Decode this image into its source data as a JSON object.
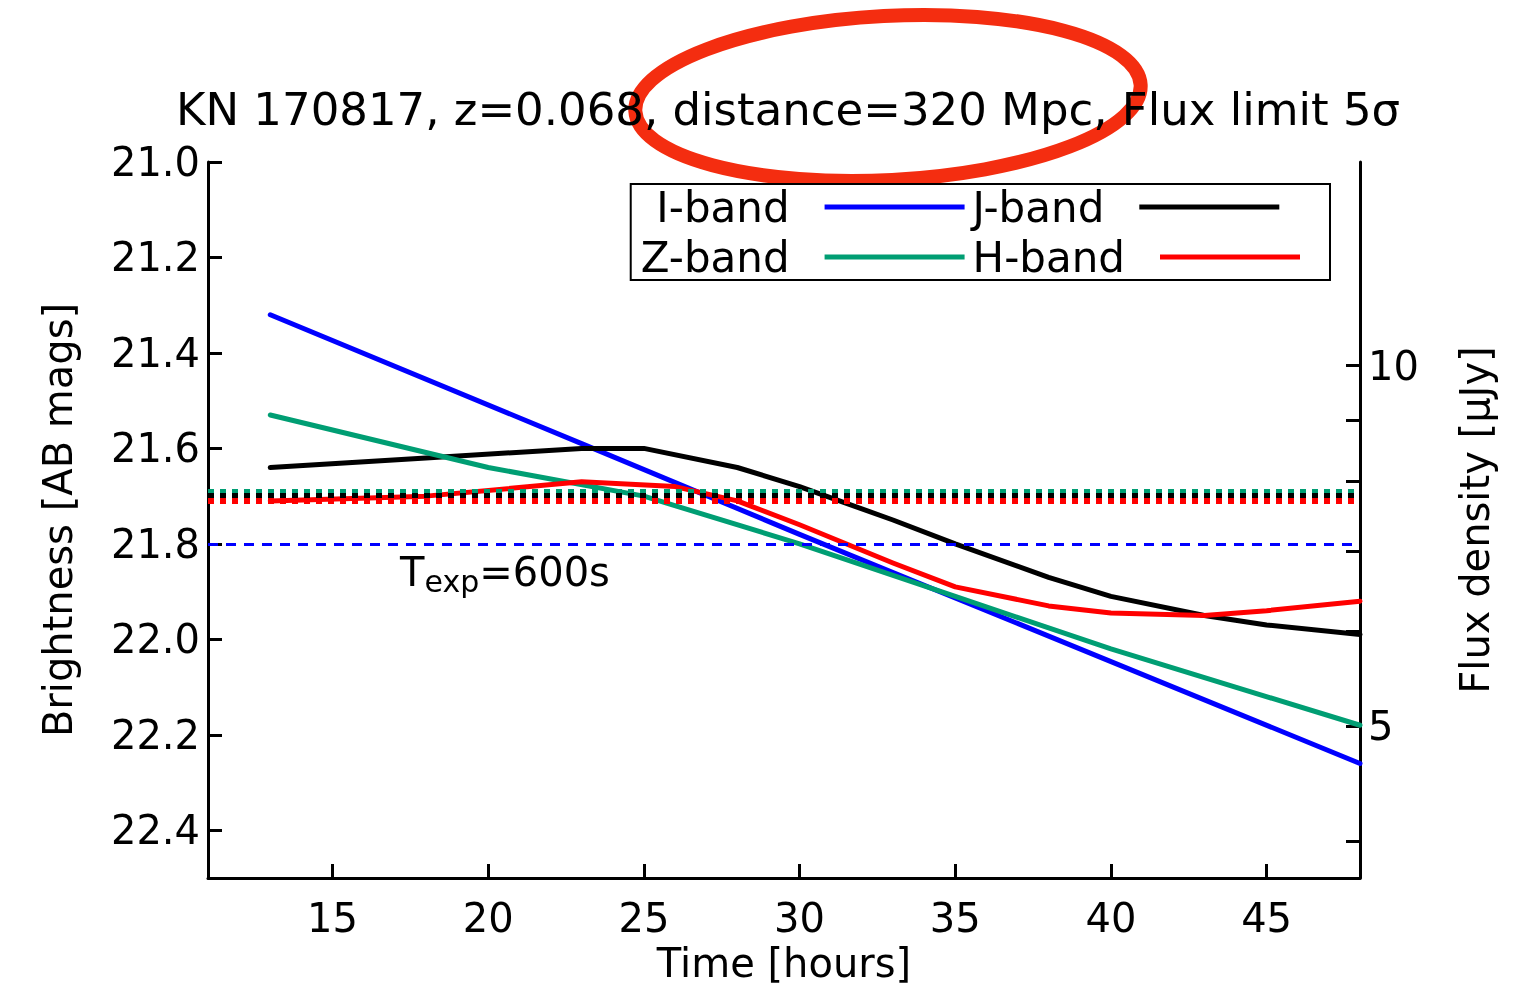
{
  "chart_data": {
    "type": "line",
    "title": "KN 170817, z=0.068, distance=320 Mpc, Flux limit 5σ",
    "xlabel": "Time [hours]",
    "ylabel": "Brightness [AB mags]",
    "y2label": "Flux density [μJy]",
    "xlim": [
      11,
      48
    ],
    "xticks": [
      15,
      20,
      25,
      30,
      35,
      40,
      45
    ],
    "ylim": [
      22.5,
      21.0
    ],
    "yticks": [
      {
        "value": 21.0,
        "label": "21.0"
      },
      {
        "value": 21.2,
        "label": "21.2"
      },
      {
        "value": 21.4,
        "label": "21.4"
      },
      {
        "value": 21.6,
        "label": "21.6"
      },
      {
        "value": 21.8,
        "label": "21.8"
      },
      {
        "value": 22.0,
        "label": "22.0"
      },
      {
        "value": 22.2,
        "label": "22.2"
      },
      {
        "value": 22.4,
        "label": "22.4"
      }
    ],
    "log": "y2",
    "y2lim": [
      3.73,
      14.8
    ],
    "y2ticks": [
      {
        "value": 4,
        "label": null
      },
      5,
      {
        "value": 6,
        "label": null
      },
      {
        "value": 7,
        "label": null
      },
      {
        "value": 8,
        "label": null
      },
      {
        "value": 9,
        "label": null
      },
      10
    ],
    "grid": false,
    "legend": "top right",
    "line_style": "solid",
    "marker": "none",
    "series": [
      {
        "name": "I-band",
        "color": "#0000ff",
        "x": [
          13,
          23,
          30,
          48
        ],
        "values": [
          21.32,
          21.59,
          21.78,
          22.26
        ]
      },
      {
        "name": "J-band",
        "color": "#000000",
        "x": [
          13,
          18,
          23,
          25,
          28,
          30,
          33,
          35,
          38,
          40,
          43,
          45,
          48
        ],
        "values": [
          21.64,
          21.62,
          21.6,
          21.6,
          21.64,
          21.68,
          21.75,
          21.8,
          21.87,
          21.91,
          21.95,
          21.97,
          21.99
        ]
      },
      {
        "name": "Z-band",
        "color": "#009e73",
        "x": [
          13,
          20,
          25,
          30,
          35,
          40,
          48
        ],
        "values": [
          21.53,
          21.64,
          21.7,
          21.8,
          21.91,
          22.02,
          22.18
        ]
      },
      {
        "name": "H-band",
        "color": "#ff0000",
        "x": [
          13,
          18,
          23,
          26,
          28,
          30,
          33,
          35,
          38,
          40,
          43,
          45,
          48
        ],
        "values": [
          21.71,
          21.7,
          21.67,
          21.68,
          21.71,
          21.76,
          21.84,
          21.89,
          21.93,
          21.945,
          21.95,
          21.94,
          21.92
        ]
      }
    ],
    "ref_lines": [
      {
        "axis": "y",
        "value": 21.8,
        "color": "#0000ff",
        "line_style": "dashed"
      },
      {
        "axis": "y",
        "value": 21.69,
        "color": "#009e73",
        "line_style": "dotted"
      },
      {
        "axis": "y",
        "value": 21.7,
        "color": "#000000",
        "line_style": "dotted"
      },
      {
        "axis": "y",
        "value": 21.71,
        "color": "#ff0000",
        "line_style": "dotted"
      }
    ],
    "annotations": [
      "T$_{exp}$=600s"
    ]
  }
}
